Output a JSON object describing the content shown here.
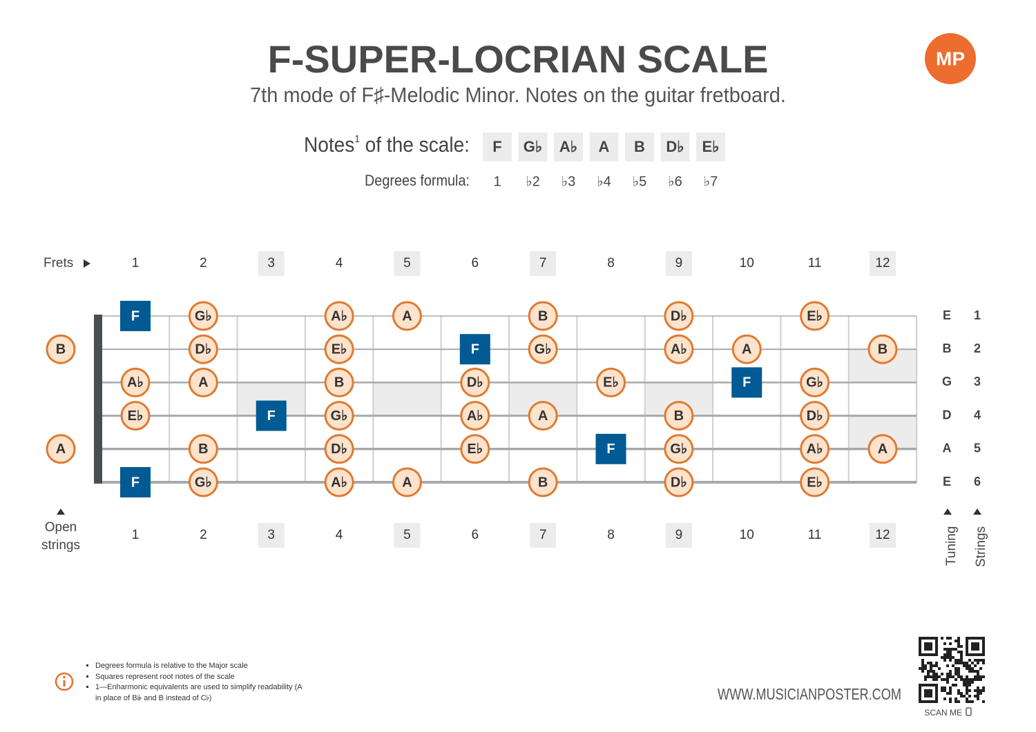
{
  "header": {
    "title": "F-SUPER-LOCRIAN SCALE",
    "subtitle": "7th mode of F♯-Melodic Minor. Notes on the guitar fretboard.",
    "logo": "MP"
  },
  "scale": {
    "heading": {
      "text": "Notes",
      "sup": "1",
      "rest": " of the scale:"
    },
    "notes": [
      "F",
      "G♭",
      "A♭",
      "A",
      "B",
      "D♭",
      "E♭"
    ],
    "degrees_label": "Degrees formula:",
    "degrees": [
      "1",
      "♭2",
      "♭3",
      "♭4",
      "♭5",
      "♭6",
      "♭7"
    ]
  },
  "fretboard": {
    "frets_label": "Frets",
    "open_label": "Open strings",
    "tuning_label": "Tuning",
    "strings_label": "Strings",
    "frets": [
      {
        "number": 1
      },
      {
        "number": 2
      },
      {
        "number": 3,
        "marker": "single"
      },
      {
        "number": 4
      },
      {
        "number": 5,
        "marker": "single"
      },
      {
        "number": 6
      },
      {
        "number": 7,
        "marker": "single"
      },
      {
        "number": 8
      },
      {
        "number": 9,
        "marker": "single"
      },
      {
        "number": 10
      },
      {
        "number": 11
      },
      {
        "number": 12,
        "marker": "double"
      }
    ],
    "strings": [
      {
        "tuning": "E",
        "number": 1,
        "notes": [
          null,
          "F",
          "G♭",
          null,
          "A♭",
          "A",
          null,
          "B",
          null,
          "D♭",
          null,
          "E♭",
          null
        ]
      },
      {
        "tuning": "B",
        "number": 2,
        "notes": [
          "B",
          null,
          "D♭",
          null,
          "E♭",
          null,
          "F",
          "G♭",
          null,
          "A♭",
          "A",
          null,
          "B"
        ]
      },
      {
        "tuning": "G",
        "number": 3,
        "notes": [
          null,
          "A♭",
          "A",
          null,
          "B",
          null,
          "D♭",
          null,
          "E♭",
          null,
          "F",
          "G♭",
          null
        ]
      },
      {
        "tuning": "D",
        "number": 4,
        "notes": [
          null,
          "E♭",
          null,
          "F",
          "G♭",
          null,
          "A♭",
          "A",
          null,
          "B",
          null,
          "D♭",
          null
        ]
      },
      {
        "tuning": "A",
        "number": 5,
        "notes": [
          "A",
          null,
          "B",
          null,
          "D♭",
          null,
          "E♭",
          null,
          "F",
          "G♭",
          null,
          "A♭",
          "A"
        ]
      },
      {
        "tuning": "E",
        "number": 6,
        "notes": [
          null,
          "F",
          "G♭",
          null,
          "A♭",
          "A",
          null,
          "B",
          null,
          "D♭",
          null,
          "E♭",
          null
        ]
      }
    ]
  },
  "footer": {
    "notes": [
      "Degrees formula is relative to the Major scale",
      "Squares represent root notes of the scale",
      "1—Enharmonic equivalents are used to simplify readability (A in place of B𝄫 and B instead of C♭)"
    ],
    "website": "WWW.MUSICIANPOSTER.COM",
    "scan": "SCAN ME"
  }
}
